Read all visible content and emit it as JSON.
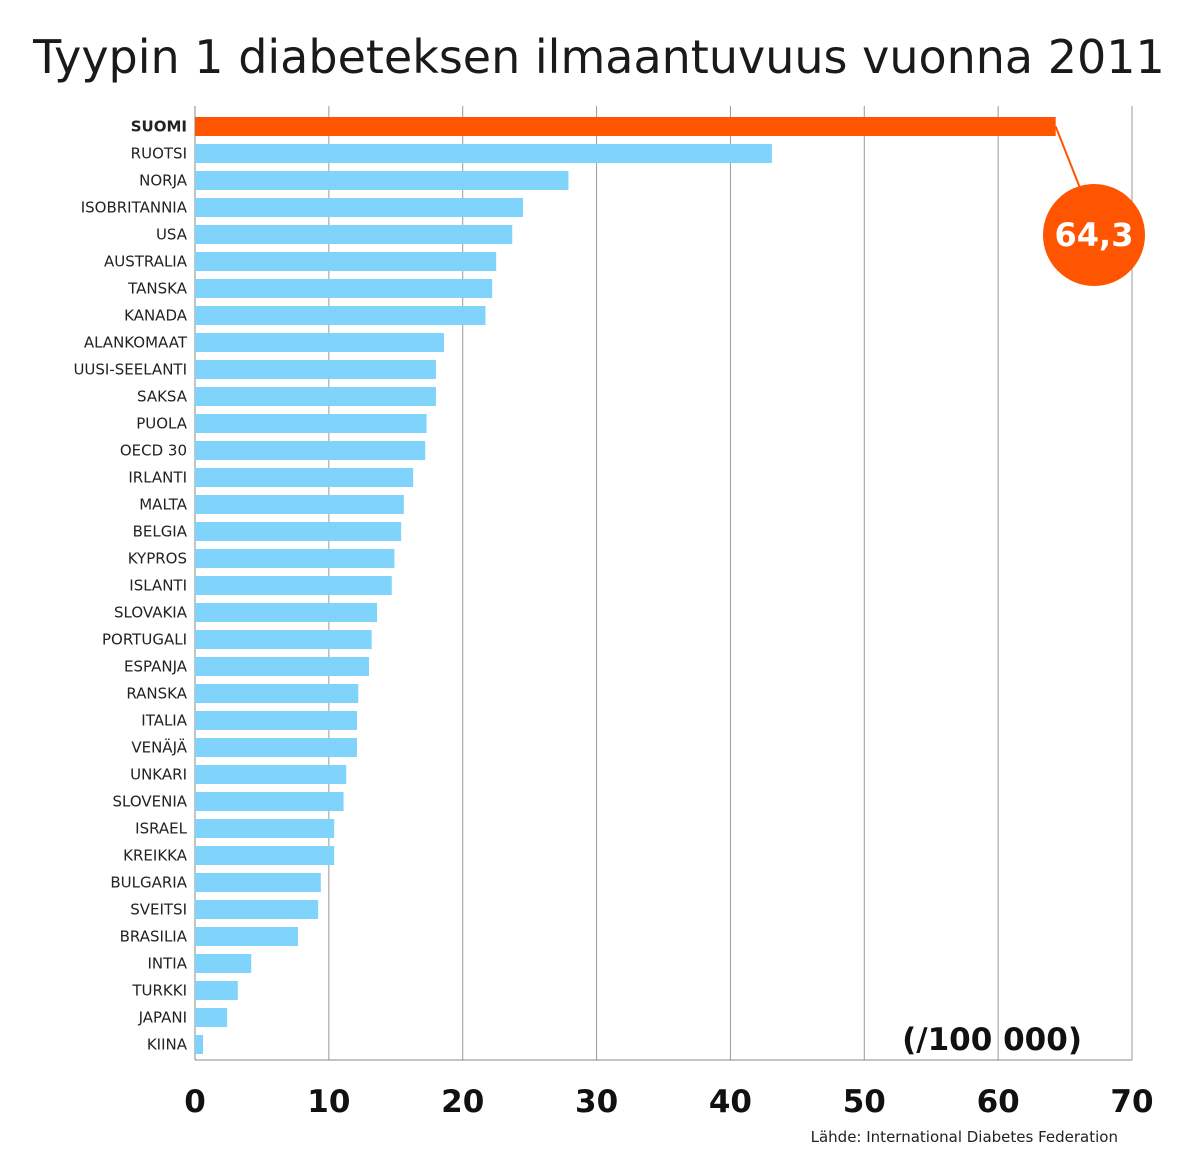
{
  "chart_data": {
    "type": "bar",
    "orientation": "horizontal",
    "title": "Tyypin 1 diabeteksen ilmaantuvuus vuonna 2011",
    "unit_label": "(/100 000)",
    "source": "Lähde: International Diabetes Federation",
    "xlim": [
      0,
      70
    ],
    "x_ticks": [
      "0",
      "10",
      "20",
      "30",
      "40",
      "50",
      "60",
      "70"
    ],
    "grid": "vertical",
    "highlight_category": "SUOMI",
    "highlight_value_label": "64,3",
    "colors": {
      "highlight": "#ff5500",
      "bar": "#80d4fc",
      "grid": "#999999"
    },
    "categories": [
      "SUOMI",
      "RUOTSI",
      "NORJA",
      "ISOBRITANNIA",
      "USA",
      "AUSTRALIA",
      "TANSKA",
      "KANADA",
      "ALANKOMAAT",
      "UUSI-SEELANTI",
      "SAKSA",
      "PUOLA",
      "OECD 30",
      "IRLANTI",
      "MALTA",
      "BELGIA",
      "KYPROS",
      "ISLANTI",
      "SLOVAKIA",
      "PORTUGALI",
      "ESPANJA",
      "RANSKA",
      "ITALIA",
      "VENÄJÄ",
      "UNKARI",
      "SLOVENIA",
      "ISRAEL",
      "KREIKKA",
      "BULGARIA",
      "SVEITSI",
      "BRASILIA",
      "INTIA",
      "TURKKI",
      "JAPANI",
      "KIINA"
    ],
    "values": [
      64.3,
      43.1,
      27.9,
      24.5,
      23.7,
      22.5,
      22.2,
      21.7,
      18.6,
      18.0,
      18.0,
      17.3,
      17.2,
      16.3,
      15.6,
      15.4,
      14.9,
      14.7,
      13.6,
      13.2,
      13.0,
      12.2,
      12.1,
      12.1,
      11.3,
      11.1,
      10.4,
      10.4,
      9.4,
      9.2,
      7.7,
      4.2,
      3.2,
      2.4,
      0.6
    ]
  }
}
